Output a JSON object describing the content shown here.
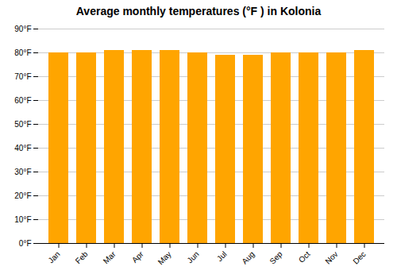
{
  "chart_data": {
    "type": "bar",
    "title": "Average monthly temperatures (°F ) in Kolonia",
    "categories": [
      "Jan",
      "Feb",
      "Mar",
      "Apr",
      "May",
      "Jun",
      "Jul",
      "Aug",
      "Sep",
      "Oct",
      "Nov",
      "Dec"
    ],
    "values": [
      80,
      80,
      81,
      81,
      81,
      80,
      79,
      79,
      80,
      80,
      80,
      81
    ],
    "color": "#FFA500",
    "ylim": [
      0,
      90
    ],
    "yticks": [
      {
        "value": 0,
        "label": "0°F"
      },
      {
        "value": 10,
        "label": "10°F"
      },
      {
        "value": 20,
        "label": "20°F"
      },
      {
        "value": 30,
        "label": "30°F"
      },
      {
        "value": 40,
        "label": "40°F"
      },
      {
        "value": 50,
        "label": "50°F"
      },
      {
        "value": 60,
        "label": "60°F"
      },
      {
        "value": 70,
        "label": "70°F"
      },
      {
        "value": 80,
        "label": "80°F"
      },
      {
        "value": 90,
        "label": "90°F"
      }
    ],
    "grid": true
  }
}
